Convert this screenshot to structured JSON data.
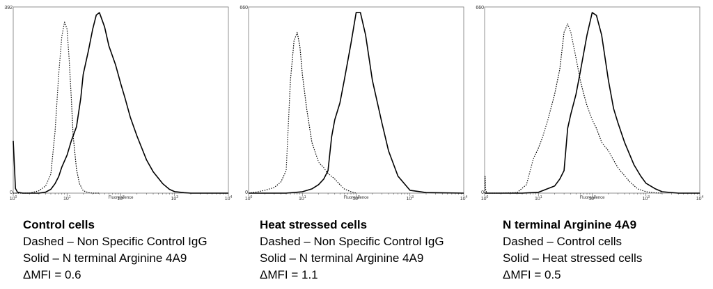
{
  "chart_data": [
    {
      "type": "line",
      "panel_title": "Control cells",
      "xscale": "log",
      "xlim": [
        1,
        10000
      ],
      "xlabel": "Fluorescence",
      "y_top_label": "392",
      "y_bottom_label": "0",
      "ylim": [
        0,
        392
      ],
      "tick_labels": [
        "10^0",
        "10^1",
        "10^2",
        "10^3",
        "10^4"
      ],
      "grid": false,
      "series": [
        {
          "name": "Dashed – Non Specific Control IgG",
          "style": "dotted",
          "x": [
            1,
            2,
            3,
            4,
            5,
            6,
            7,
            8,
            9,
            10,
            11,
            12,
            13,
            15,
            17,
            20,
            25,
            30,
            40
          ],
          "y": [
            0,
            0,
            5,
            15,
            40,
            130,
            250,
            330,
            360,
            345,
            280,
            200,
            120,
            50,
            20,
            5,
            1,
            0,
            0
          ]
        },
        {
          "name": "Solid – N terminal Arginine 4A9",
          "style": "solid",
          "x": [
            1,
            1.05,
            1.1,
            1.2,
            1.5,
            2,
            3,
            4,
            5,
            6,
            7,
            8,
            10,
            12,
            15,
            18,
            20,
            25,
            30,
            35,
            40,
            50,
            60,
            80,
            100,
            120,
            150,
            200,
            300,
            400,
            600,
            800,
            1000,
            1500,
            2000,
            4000,
            10000
          ],
          "y": [
            110,
            60,
            10,
            2,
            0,
            0,
            0,
            2,
            8,
            20,
            35,
            55,
            80,
            110,
            140,
            200,
            250,
            300,
            345,
            375,
            380,
            350,
            310,
            270,
            230,
            200,
            160,
            120,
            70,
            45,
            20,
            8,
            3,
            1,
            0,
            0,
            0
          ]
        }
      ]
    },
    {
      "type": "line",
      "panel_title": "Heat stressed cells",
      "xscale": "log",
      "xlim": [
        1,
        10000
      ],
      "xlabel": "Fluorescence",
      "y_top_label": "660",
      "y_bottom_label": "0",
      "ylim": [
        0,
        660
      ],
      "tick_labels": [
        "10^0",
        "10^1",
        "10^2",
        "10^3",
        "10^4"
      ],
      "grid": false,
      "series": [
        {
          "name": "Dashed – Non Specific Control IgG",
          "style": "dotted",
          "x": [
            1,
            1.5,
            2,
            3,
            4,
            5,
            6,
            7,
            8,
            9,
            10,
            12,
            15,
            20,
            25,
            30,
            40,
            50,
            60,
            80,
            100
          ],
          "y": [
            0,
            5,
            10,
            20,
            40,
            80,
            400,
            540,
            570,
            520,
            420,
            300,
            180,
            110,
            90,
            70,
            50,
            30,
            15,
            5,
            0
          ]
        },
        {
          "name": "Solid – N terminal Arginine 4A9",
          "style": "solid",
          "x": [
            1,
            2,
            5,
            10,
            15,
            20,
            25,
            30,
            35,
            40,
            50,
            60,
            80,
            100,
            120,
            150,
            200,
            300,
            400,
            600,
            1000,
            2000,
            10000
          ],
          "y": [
            0,
            0,
            0,
            5,
            15,
            30,
            50,
            80,
            200,
            260,
            320,
            400,
            530,
            640,
            640,
            560,
            400,
            250,
            150,
            60,
            10,
            2,
            0
          ]
        }
      ]
    },
    {
      "type": "line",
      "panel_title": "N terminal Arginine 4A9",
      "xscale": "log",
      "xlim": [
        1,
        10000
      ],
      "xlabel": "Fluorescence",
      "y_top_label": "660",
      "y_bottom_label": "0",
      "ylim": [
        0,
        660
      ],
      "tick_labels": [
        "10^0",
        "10^1",
        "10^2",
        "10^3",
        "10^4"
      ],
      "grid": false,
      "series": [
        {
          "name": "Dashed – Control cells",
          "style": "dotted",
          "x": [
            1,
            1.02,
            1.05,
            1.1,
            1.5,
            2,
            4,
            6,
            8,
            10,
            12,
            15,
            20,
            25,
            30,
            35,
            40,
            50,
            60,
            70,
            80,
            100,
            120,
            150,
            200,
            300,
            500,
            700,
            1000,
            1500,
            2000
          ],
          "y": [
            0,
            60,
            10,
            0,
            0,
            0,
            2,
            30,
            120,
            160,
            200,
            260,
            350,
            440,
            570,
            600,
            570,
            480,
            400,
            350,
            310,
            260,
            230,
            180,
            150,
            90,
            40,
            15,
            5,
            1,
            0
          ]
        },
        {
          "name": "Solid – Heat stressed cells",
          "style": "solid",
          "x": [
            1,
            5,
            10,
            20,
            25,
            30,
            35,
            40,
            50,
            60,
            80,
            100,
            120,
            150,
            200,
            250,
            300,
            400,
            600,
            800,
            1000,
            1500,
            2000,
            4000,
            10000
          ],
          "y": [
            0,
            0,
            3,
            25,
            50,
            80,
            230,
            280,
            350,
            430,
            560,
            640,
            630,
            560,
            400,
            300,
            250,
            180,
            100,
            60,
            35,
            15,
            5,
            0,
            0
          ]
        }
      ]
    }
  ],
  "captions": [
    {
      "title": "Control cells",
      "dashed": "Dashed – Non Specific Control IgG",
      "solid": "Solid – N terminal Arginine 4A9",
      "mfi": "ΔMFI = 0.6"
    },
    {
      "title": "Heat stressed cells",
      "dashed": "Dashed – Non Specific Control IgG",
      "solid": "Solid – N terminal Arginine 4A9",
      "mfi": "ΔMFI = 1.1"
    },
    {
      "title": "N terminal Arginine 4A9",
      "dashed": "Dashed – Control cells",
      "solid": "Solid – Heat stressed cells",
      "mfi": "ΔMFI = 0.5"
    }
  ]
}
